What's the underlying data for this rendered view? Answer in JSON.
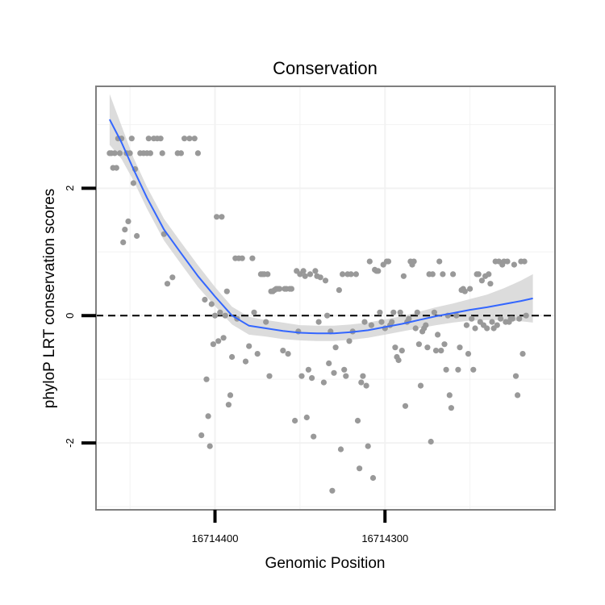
{
  "chart_data": {
    "type": "scatter",
    "title": "Conservation",
    "xlabel": "Genomic Position",
    "ylabel": "phyloP LRT conservation scores",
    "x_reversed": true,
    "xlim": [
      16714470,
      16714200
    ],
    "ylim": [
      -3.05,
      3.6
    ],
    "x_ticks": [
      16714400,
      16714300
    ],
    "x_tick_labels": [
      "16714400",
      "16714300"
    ],
    "y_ticks": [
      -2,
      0,
      2
    ],
    "y_tick_labels": [
      "-2",
      "0",
      "2"
    ],
    "reference_line": {
      "y": 0,
      "style": "dashed"
    },
    "grid": true,
    "colors": {
      "points": "#999999",
      "smooth": "#3366ff",
      "ribbon": "#d6d6d6",
      "panel_border": "#7f7f7f",
      "grid": "#f2f2f2"
    },
    "points": [
      [
        16714462,
        2.55
      ],
      [
        16714461,
        2.55
      ],
      [
        16714460,
        2.32
      ],
      [
        16714459,
        2.55
      ],
      [
        16714458,
        2.32
      ],
      [
        16714457,
        2.78
      ],
      [
        16714456,
        2.55
      ],
      [
        16714455,
        2.78
      ],
      [
        16714454,
        1.15
      ],
      [
        16714453,
        1.35
      ],
      [
        16714452,
        2.55
      ],
      [
        16714451,
        1.48
      ],
      [
        16714450,
        2.55
      ],
      [
        16714449,
        2.78
      ],
      [
        16714448,
        2.08
      ],
      [
        16714447,
        2.3
      ],
      [
        16714446,
        1.25
      ],
      [
        16714444,
        2.55
      ],
      [
        16714442,
        2.55
      ],
      [
        16714440,
        2.55
      ],
      [
        16714439,
        2.78
      ],
      [
        16714438,
        2.55
      ],
      [
        16714436,
        2.78
      ],
      [
        16714434,
        2.78
      ],
      [
        16714432,
        2.78
      ],
      [
        16714431,
        2.55
      ],
      [
        16714430,
        1.28
      ],
      [
        16714428,
        0.5
      ],
      [
        16714425,
        0.6
      ],
      [
        16714422,
        2.55
      ],
      [
        16714420,
        2.55
      ],
      [
        16714418,
        2.78
      ],
      [
        16714415,
        2.78
      ],
      [
        16714412,
        2.78
      ],
      [
        16714410,
        2.55
      ],
      [
        16714408,
        -1.88
      ],
      [
        16714406,
        0.25
      ],
      [
        16714405,
        -1.0
      ],
      [
        16714404,
        -1.58
      ],
      [
        16714403,
        -2.05
      ],
      [
        16714402,
        0.18
      ],
      [
        16714401,
        -0.45
      ],
      [
        16714400,
        0.0
      ],
      [
        16714399,
        1.55
      ],
      [
        16714398,
        -0.4
      ],
      [
        16714397,
        0.05
      ],
      [
        16714396,
        1.55
      ],
      [
        16714395,
        -0.35
      ],
      [
        16714394,
        0.0
      ],
      [
        16714393,
        0.38
      ],
      [
        16714392,
        -1.4
      ],
      [
        16714391,
        -1.25
      ],
      [
        16714390,
        -0.65
      ],
      [
        16714388,
        0.9
      ],
      [
        16714387,
        -0.05
      ],
      [
        16714386,
        0.9
      ],
      [
        16714384,
        0.9
      ],
      [
        16714382,
        -0.72
      ],
      [
        16714380,
        -0.48
      ],
      [
        16714378,
        0.9
      ],
      [
        16714377,
        0.05
      ],
      [
        16714375,
        -0.6
      ],
      [
        16714373,
        0.65
      ],
      [
        16714372,
        0.65
      ],
      [
        16714371,
        0.65
      ],
      [
        16714370,
        -0.1
      ],
      [
        16714369,
        0.65
      ],
      [
        16714368,
        -0.95
      ],
      [
        16714367,
        0.38
      ],
      [
        16714366,
        0.38
      ],
      [
        16714365,
        0.4
      ],
      [
        16714364,
        0.42
      ],
      [
        16714363,
        0.42
      ],
      [
        16714362,
        0.42
      ],
      [
        16714360,
        -0.55
      ],
      [
        16714359,
        0.42
      ],
      [
        16714358,
        0.42
      ],
      [
        16714357,
        -0.6
      ],
      [
        16714356,
        0.42
      ],
      [
        16714355,
        0.42
      ],
      [
        16714353,
        -1.65
      ],
      [
        16714352,
        0.7
      ],
      [
        16714351,
        -0.25
      ],
      [
        16714350,
        0.65
      ],
      [
        16714349,
        -0.95
      ],
      [
        16714348,
        0.7
      ],
      [
        16714347,
        0.62
      ],
      [
        16714346,
        -1.6
      ],
      [
        16714345,
        -0.85
      ],
      [
        16714344,
        0.65
      ],
      [
        16714343,
        -0.98
      ],
      [
        16714342,
        -1.9
      ],
      [
        16714341,
        0.7
      ],
      [
        16714340,
        0.62
      ],
      [
        16714339,
        -0.1
      ],
      [
        16714338,
        0.6
      ],
      [
        16714336,
        -1.05
      ],
      [
        16714335,
        0.55
      ],
      [
        16714334,
        0.0
      ],
      [
        16714333,
        -0.75
      ],
      [
        16714332,
        -0.25
      ],
      [
        16714331,
        -2.75
      ],
      [
        16714330,
        -0.9
      ],
      [
        16714329,
        -0.5
      ],
      [
        16714327,
        0.4
      ],
      [
        16714326,
        -2.1
      ],
      [
        16714325,
        0.65
      ],
      [
        16714324,
        -0.85
      ],
      [
        16714323,
        -0.95
      ],
      [
        16714322,
        0.65
      ],
      [
        16714321,
        -0.4
      ],
      [
        16714320,
        0.65
      ],
      [
        16714319,
        -0.25
      ],
      [
        16714317,
        0.65
      ],
      [
        16714316,
        -1.65
      ],
      [
        16714315,
        -2.4
      ],
      [
        16714314,
        -1.05
      ],
      [
        16714313,
        -0.95
      ],
      [
        16714312,
        -0.1
      ],
      [
        16714311,
        -1.1
      ],
      [
        16714310,
        -2.05
      ],
      [
        16714309,
        0.85
      ],
      [
        16714308,
        -0.15
      ],
      [
        16714307,
        -2.55
      ],
      [
        16714306,
        0.72
      ],
      [
        16714305,
        0.7
      ],
      [
        16714304,
        0.7
      ],
      [
        16714303,
        0.05
      ],
      [
        16714302,
        -0.1
      ],
      [
        16714301,
        0.8
      ],
      [
        16714300,
        -0.2
      ],
      [
        16714299,
        0.85
      ],
      [
        16714298,
        0.85
      ],
      [
        16714297,
        -0.15
      ],
      [
        16714296,
        -0.1
      ],
      [
        16714295,
        0.05
      ],
      [
        16714294,
        -0.5
      ],
      [
        16714293,
        -0.65
      ],
      [
        16714292,
        -0.7
      ],
      [
        16714291,
        0.05
      ],
      [
        16714290,
        -0.55
      ],
      [
        16714289,
        0.62
      ],
      [
        16714288,
        -1.42
      ],
      [
        16714287,
        -0.1
      ],
      [
        16714286,
        -0.05
      ],
      [
        16714285,
        0.85
      ],
      [
        16714284,
        0.8
      ],
      [
        16714283,
        0.85
      ],
      [
        16714282,
        -0.2
      ],
      [
        16714281,
        0.05
      ],
      [
        16714280,
        -0.45
      ],
      [
        16714279,
        -1.1
      ],
      [
        16714278,
        -0.25
      ],
      [
        16714277,
        -0.2
      ],
      [
        16714276,
        -0.15
      ],
      [
        16714275,
        -0.5
      ],
      [
        16714274,
        0.65
      ],
      [
        16714273,
        -1.98
      ],
      [
        16714272,
        0.65
      ],
      [
        16714271,
        0.05
      ],
      [
        16714270,
        -0.55
      ],
      [
        16714269,
        -0.3
      ],
      [
        16714268,
        0.85
      ],
      [
        16714267,
        -0.55
      ],
      [
        16714266,
        0.65
      ],
      [
        16714265,
        -0.45
      ],
      [
        16714264,
        -0.85
      ],
      [
        16714263,
        0.0
      ],
      [
        16714262,
        -1.25
      ],
      [
        16714261,
        -1.45
      ],
      [
        16714260,
        0.65
      ],
      [
        16714258,
        0.0
      ],
      [
        16714257,
        -0.85
      ],
      [
        16714256,
        -0.5
      ],
      [
        16714255,
        0.4
      ],
      [
        16714254,
        0.42
      ],
      [
        16714253,
        0.38
      ],
      [
        16714252,
        -0.15
      ],
      [
        16714251,
        -0.6
      ],
      [
        16714250,
        0.42
      ],
      [
        16714249,
        -0.05
      ],
      [
        16714248,
        -0.85
      ],
      [
        16714247,
        -0.2
      ],
      [
        16714246,
        0.65
      ],
      [
        16714245,
        0.65
      ],
      [
        16714244,
        -0.1
      ],
      [
        16714243,
        0.55
      ],
      [
        16714242,
        -0.15
      ],
      [
        16714241,
        0.62
      ],
      [
        16714240,
        -0.2
      ],
      [
        16714239,
        0.65
      ],
      [
        16714238,
        0.5
      ],
      [
        16714237,
        -0.1
      ],
      [
        16714236,
        -0.2
      ],
      [
        16714235,
        0.85
      ],
      [
        16714234,
        -0.15
      ],
      [
        16714233,
        0.85
      ],
      [
        16714232,
        -0.05
      ],
      [
        16714231,
        0.8
      ],
      [
        16714230,
        0.85
      ],
      [
        16714229,
        -0.1
      ],
      [
        16714228,
        0.85
      ],
      [
        16714227,
        -0.1
      ],
      [
        16714226,
        -0.05
      ],
      [
        16714225,
        -0.05
      ],
      [
        16714224,
        0.8
      ],
      [
        16714223,
        -0.95
      ],
      [
        16714222,
        -1.25
      ],
      [
        16714221,
        -0.05
      ],
      [
        16714220,
        0.85
      ],
      [
        16714219,
        -0.6
      ],
      [
        16714218,
        0.85
      ],
      [
        16714217,
        0.0
      ]
    ],
    "smooth": [
      [
        16714462,
        3.08,
        3.48,
        2.68
      ],
      [
        16714455,
        2.72,
        2.98,
        2.46
      ],
      [
        16714448,
        2.3,
        2.48,
        2.12
      ],
      [
        16714440,
        1.85,
        2.02,
        1.68
      ],
      [
        16714430,
        1.35,
        1.52,
        1.18
      ],
      [
        16714420,
        0.98,
        1.15,
        0.81
      ],
      [
        16714410,
        0.62,
        0.79,
        0.45
      ],
      [
        16714400,
        0.3,
        0.45,
        0.15
      ],
      [
        16714390,
        0.0,
        0.14,
        -0.14
      ],
      [
        16714380,
        -0.16,
        -0.02,
        -0.3
      ],
      [
        16714370,
        -0.2,
        -0.07,
        -0.33
      ],
      [
        16714360,
        -0.24,
        -0.11,
        -0.37
      ],
      [
        16714350,
        -0.27,
        -0.15,
        -0.39
      ],
      [
        16714340,
        -0.28,
        -0.16,
        -0.4
      ],
      [
        16714330,
        -0.28,
        -0.16,
        -0.4
      ],
      [
        16714320,
        -0.26,
        -0.14,
        -0.38
      ],
      [
        16714310,
        -0.23,
        -0.11,
        -0.35
      ],
      [
        16714300,
        -0.18,
        -0.06,
        -0.3
      ],
      [
        16714290,
        -0.13,
        -0.01,
        -0.25
      ],
      [
        16714280,
        -0.07,
        0.06,
        -0.2
      ],
      [
        16714270,
        -0.01,
        0.13,
        -0.15
      ],
      [
        16714260,
        0.04,
        0.19,
        -0.11
      ],
      [
        16714250,
        0.09,
        0.26,
        -0.08
      ],
      [
        16714240,
        0.13,
        0.33,
        -0.07
      ],
      [
        16714230,
        0.18,
        0.43,
        -0.07
      ],
      [
        16714220,
        0.23,
        0.55,
        -0.09
      ],
      [
        16714213,
        0.27,
        0.65,
        -0.11
      ]
    ]
  }
}
